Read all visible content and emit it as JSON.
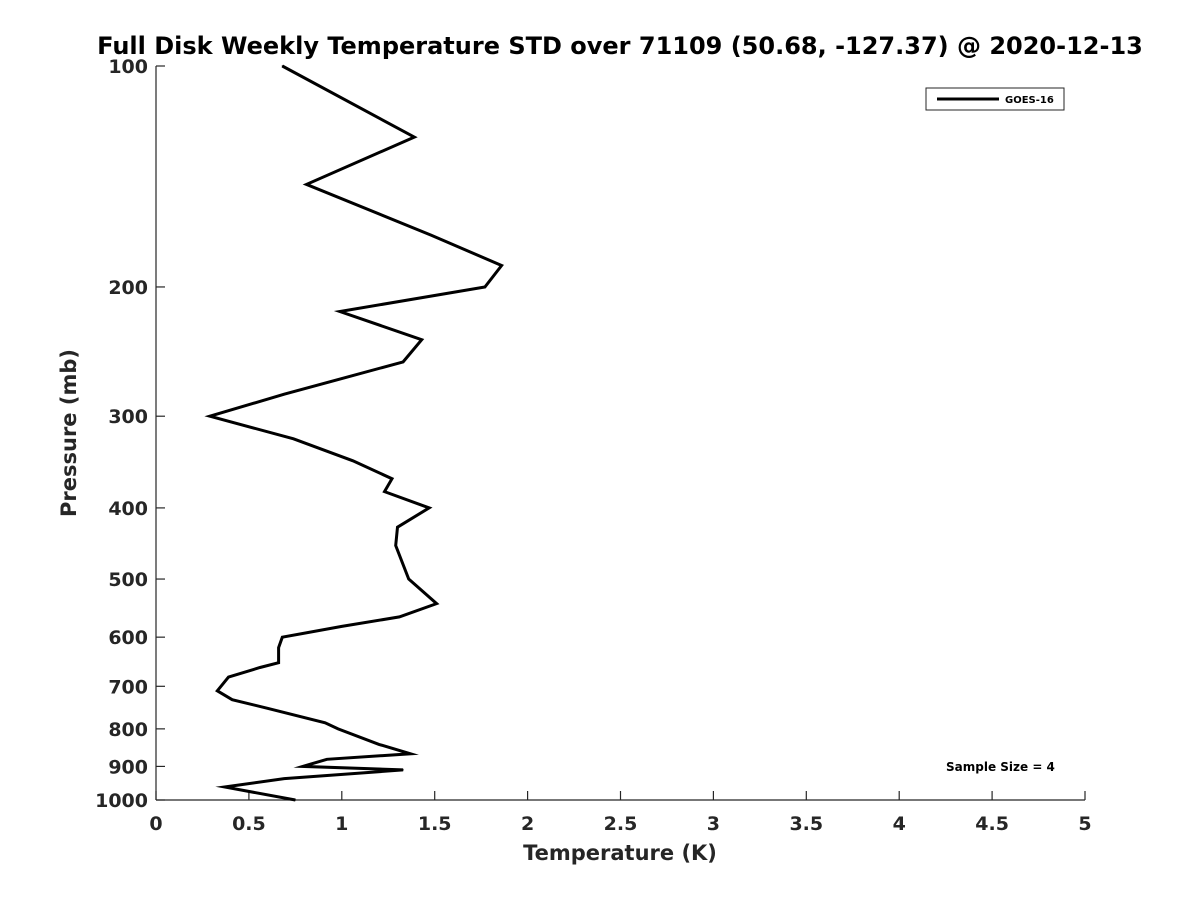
{
  "chart_data": {
    "type": "line",
    "title": "Full Disk Weekly Temperature STD over 71109 (50.68, -127.37) @ 2020-12-13",
    "xlabel": "Temperature (K)",
    "ylabel": "Pressure (mb)",
    "xlim": [
      0,
      5
    ],
    "ylim": [
      100,
      1000
    ],
    "y_scale": "log",
    "y_reversed": true,
    "x_ticks": [
      "0",
      "0.5",
      "1",
      "1.5",
      "2",
      "2.5",
      "3",
      "3.5",
      "4",
      "4.5",
      "5"
    ],
    "y_ticks": [
      "100",
      "200",
      "300",
      "400",
      "500",
      "600",
      "700",
      "800",
      "900",
      "1000"
    ],
    "grid": false,
    "legend_position": "top-right",
    "annotation": "Sample Size = 4",
    "series": [
      {
        "name": "GOES-16",
        "color": "#000000",
        "points": [
          {
            "x": 0.68,
            "p": 100
          },
          {
            "x": 1.39,
            "p": 125
          },
          {
            "x": 0.81,
            "p": 145
          },
          {
            "x": 1.48,
            "p": 170
          },
          {
            "x": 1.86,
            "p": 187
          },
          {
            "x": 1.77,
            "p": 200
          },
          {
            "x": 0.99,
            "p": 216
          },
          {
            "x": 1.43,
            "p": 236
          },
          {
            "x": 1.33,
            "p": 253
          },
          {
            "x": 0.69,
            "p": 280
          },
          {
            "x": 0.29,
            "p": 300
          },
          {
            "x": 0.74,
            "p": 322
          },
          {
            "x": 1.06,
            "p": 345
          },
          {
            "x": 1.27,
            "p": 365
          },
          {
            "x": 1.23,
            "p": 380
          },
          {
            "x": 1.47,
            "p": 400
          },
          {
            "x": 1.3,
            "p": 425
          },
          {
            "x": 1.29,
            "p": 450
          },
          {
            "x": 1.36,
            "p": 500
          },
          {
            "x": 1.51,
            "p": 540
          },
          {
            "x": 1.31,
            "p": 563
          },
          {
            "x": 1.0,
            "p": 580
          },
          {
            "x": 0.68,
            "p": 600
          },
          {
            "x": 0.66,
            "p": 620
          },
          {
            "x": 0.66,
            "p": 650
          },
          {
            "x": 0.56,
            "p": 660
          },
          {
            "x": 0.39,
            "p": 680
          },
          {
            "x": 0.33,
            "p": 710
          },
          {
            "x": 0.41,
            "p": 730
          },
          {
            "x": 0.6,
            "p": 750
          },
          {
            "x": 0.91,
            "p": 785
          },
          {
            "x": 0.98,
            "p": 800
          },
          {
            "x": 1.2,
            "p": 840
          },
          {
            "x": 1.37,
            "p": 865
          },
          {
            "x": 0.92,
            "p": 880
          },
          {
            "x": 0.79,
            "p": 900
          },
          {
            "x": 1.33,
            "p": 910
          },
          {
            "x": 0.69,
            "p": 935
          },
          {
            "x": 0.37,
            "p": 960
          },
          {
            "x": 0.75,
            "p": 1000
          }
        ]
      }
    ]
  }
}
